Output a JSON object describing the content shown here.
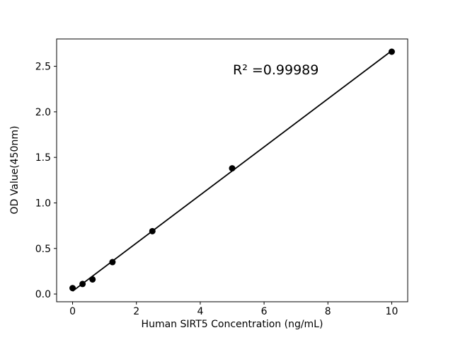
{
  "figure": {
    "background": "#ffffff"
  },
  "chart_data": {
    "type": "scatter",
    "title": "",
    "xlabel": "Human SIRT5 Concentration (ng/mL)",
    "ylabel": "OD Value(450nm)",
    "annotation": "R² =0.99989",
    "r_squared": 0.99989,
    "x": [
      0,
      0.3125,
      0.625,
      1.25,
      2.5,
      5,
      10
    ],
    "y": [
      0.065,
      0.11,
      0.16,
      0.35,
      0.69,
      1.38,
      2.66
    ],
    "fit": "linear",
    "xticks": [
      "0",
      "2",
      "4",
      "6",
      "8",
      "10"
    ],
    "yticks": [
      "0.0",
      "0.5",
      "1.0",
      "1.5",
      "2.0",
      "2.5"
    ],
    "xlim": [
      -0.5,
      10.5
    ],
    "ylim": [
      -0.085,
      2.8
    ],
    "grid": false,
    "legend": "none",
    "marker_color": "#000000",
    "line_color": "#000000",
    "axis_color": "#000000"
  }
}
